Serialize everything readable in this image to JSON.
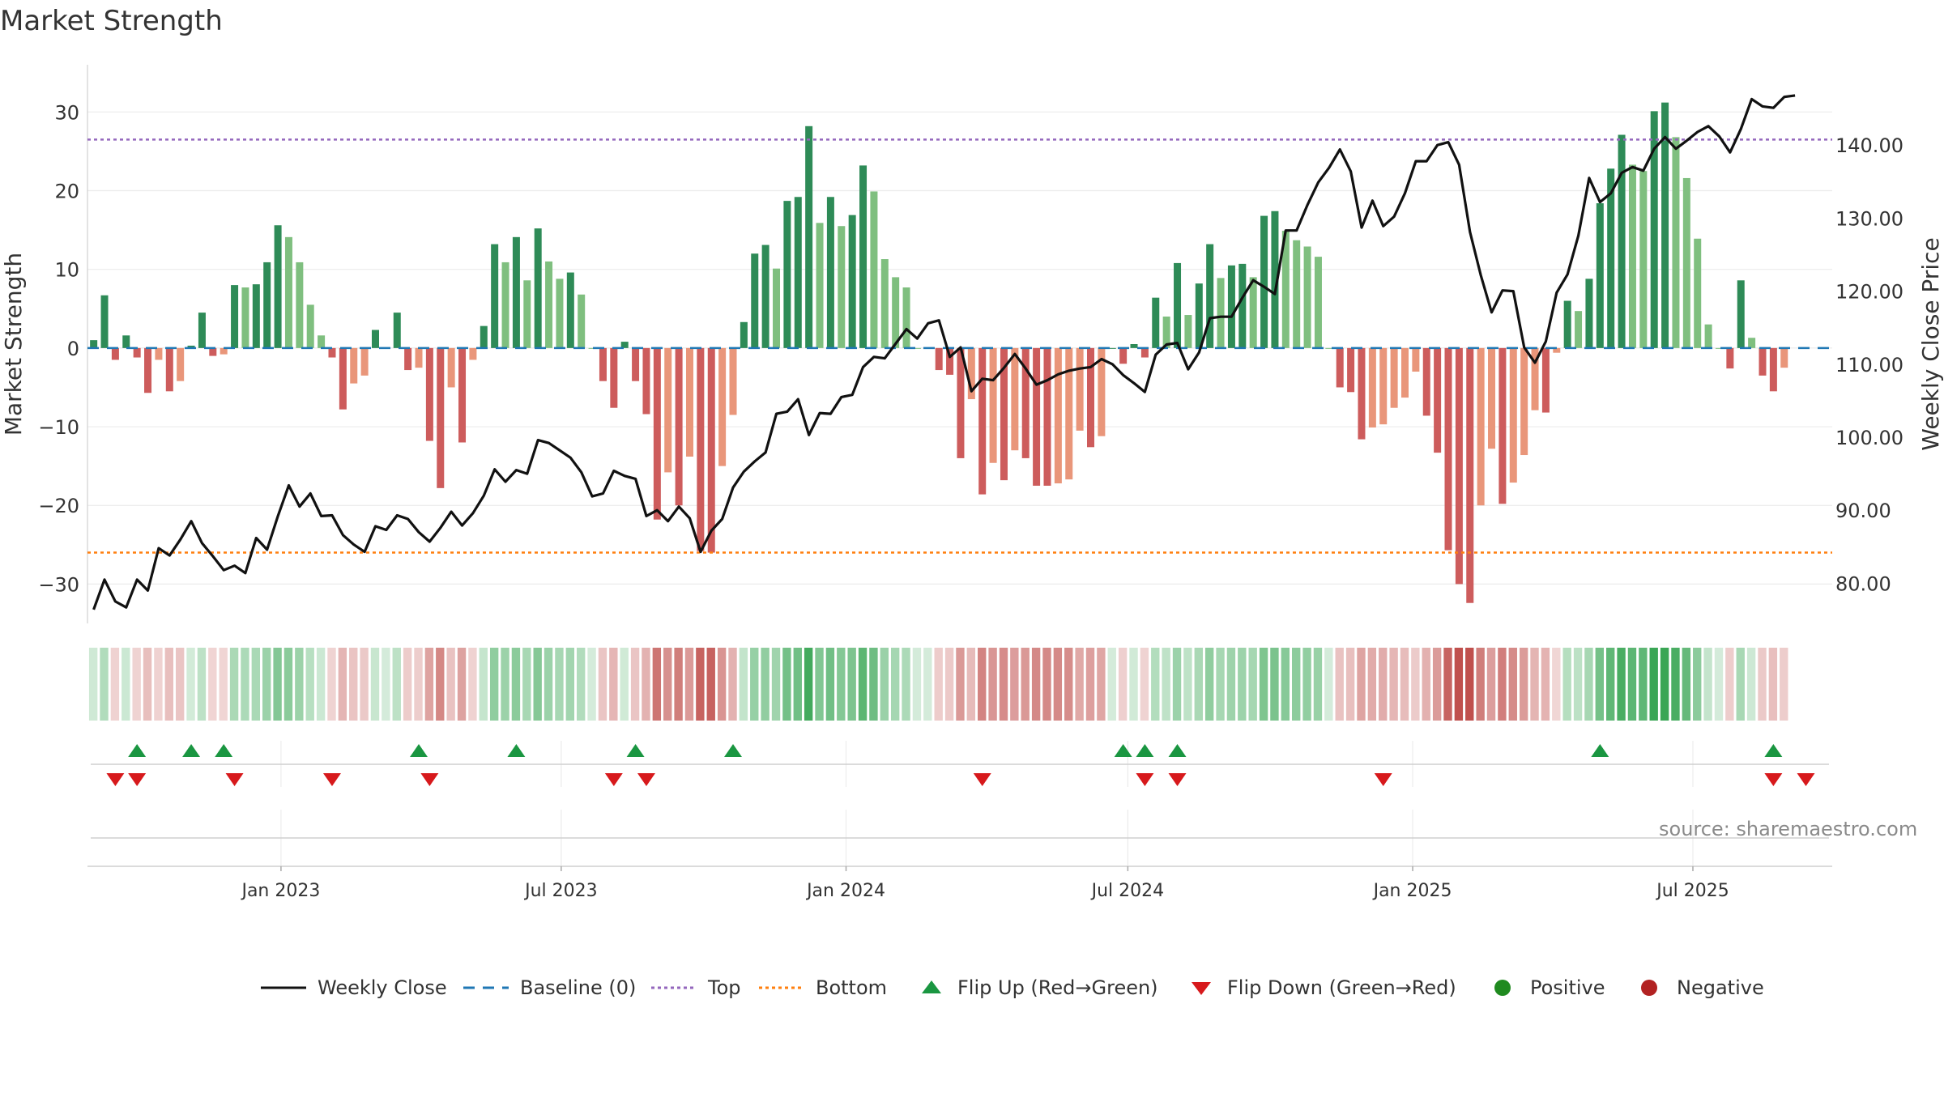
{
  "title": "Market Strength",
  "source": "source: sharemaestro.com",
  "colors": {
    "pos_dark": "#2e8b57",
    "pos_light": "#7fbf7f",
    "neg_dark": "#cd5c5c",
    "neg_light": "#e9967a",
    "close": "#111111",
    "baseline": "#1f77b4",
    "top": "#9467bd",
    "bottom": "#ff7f0e",
    "flip_up": "#1a9641",
    "flip_down": "#d7191c",
    "positive": "#1f8a1f",
    "negative": "#b22222"
  },
  "legend": [
    {
      "key": "close",
      "label": "Weekly Close"
    },
    {
      "key": "baseline",
      "label": "Baseline (0)"
    },
    {
      "key": "top",
      "label": "Top"
    },
    {
      "key": "bottom",
      "label": "Bottom"
    },
    {
      "key": "flip_up",
      "label": "Flip Up (Red→Green)"
    },
    {
      "key": "flip_down",
      "label": "Flip Down (Green→Red)"
    },
    {
      "key": "positive",
      "label": "Positive"
    },
    {
      "key": "negative",
      "label": "Negative"
    }
  ],
  "chart_data": {
    "type": "bar",
    "title": "Market Strength",
    "ylabel": "Market Strength",
    "y2label": "Weekly Close Price",
    "ylim": [
      -35,
      36
    ],
    "y2lim": [
      74.5,
      151
    ],
    "yticks": [
      30,
      20,
      10,
      0,
      -10,
      -20,
      -30
    ],
    "ytick_labels": [
      "30",
      "20",
      "10",
      "0",
      "−10",
      "−20",
      "−30"
    ],
    "y2ticks": [
      140,
      130,
      120,
      110,
      100,
      90,
      80
    ],
    "y2tick_labels": [
      "140.00",
      "130.00",
      "120.00",
      "110.00",
      "100.00",
      "90.00",
      "80.00"
    ],
    "top_threshold": 26.5,
    "bottom_threshold": -26,
    "baseline": 0,
    "date_start": "2022-09-02",
    "xlim": [
      "2022-08-29",
      "2025-09-29"
    ],
    "xticks": [
      "2023-01-01",
      "2023-07-01",
      "2024-01-01",
      "2024-07-01",
      "2025-01-01",
      "2025-07-01"
    ],
    "xtick_labels": [
      "Jan 2023",
      "Jul 2023",
      "Jan 2024",
      "Jul 2024",
      "Jan 2025",
      "Jul 2025"
    ],
    "strength": [
      1,
      6.7,
      -1.5,
      1.6,
      -1.2,
      -5.7,
      -1.5,
      -5.5,
      -4.2,
      0.3,
      4.5,
      -1,
      -0.8,
      8,
      7.7,
      8.1,
      10.9,
      15.6,
      14.1,
      10.9,
      5.5,
      1.6,
      -1.2,
      -7.8,
      -4.5,
      -3.5,
      2.3,
      0,
      4.5,
      -2.8,
      -2.5,
      -11.8,
      -17.8,
      -5,
      -12,
      -1.5,
      2.8,
      13.2,
      10.9,
      14.1,
      8.6,
      15.2,
      11,
      8.8,
      9.6,
      6.8,
      0,
      -4.2,
      -7.6,
      0.8,
      -4.2,
      -8.4,
      -21.8,
      -15.8,
      -20,
      -13.8,
      -25.8,
      -26,
      -15,
      -8.5,
      3.3,
      12,
      13.1,
      10.1,
      18.7,
      19.2,
      28.2,
      15.9,
      19.2,
      15.5,
      16.9,
      23.2,
      19.9,
      11.3,
      9,
      7.7,
      0,
      0,
      -2.8,
      -3.4,
      -14,
      -6.5,
      -18.6,
      -14.6,
      -16.8,
      -13,
      -14,
      -17.5,
      -17.5,
      -17.2,
      -16.7,
      -10.5,
      -12.6,
      -11.2,
      0,
      -2,
      0.5,
      -1.2,
      6.4,
      4,
      10.8,
      4.2,
      8.2,
      13.2,
      8.9,
      10.5,
      10.7,
      9,
      16.8,
      17.4,
      14.9,
      13.7,
      12.9,
      11.6,
      0,
      -5,
      -5.6,
      -11.6,
      -10.1,
      -9.7,
      -7.6,
      -6.3,
      -3,
      -8.6,
      -13.3,
      -25.7,
      -30,
      -32.4,
      -20,
      -12.8,
      -19.8,
      -17.1,
      -13.6,
      -7.9,
      -8.2,
      -0.6,
      6,
      4.7,
      8.8,
      18.4,
      22.8,
      27.1,
      23.3,
      22.5,
      30.1,
      31.2,
      26.8,
      21.6,
      13.9,
      3,
      0,
      -2.6,
      8.6,
      1.3,
      -3.5,
      -5.5,
      -2.5
    ],
    "close": [
      76.4,
      80.5,
      77.5,
      76.7,
      80.5,
      79,
      84.8,
      83.8,
      86,
      88.5,
      85.5,
      83.7,
      81.8,
      82.4,
      81.4,
      86.2,
      84.6,
      89.2,
      93.4,
      90.5,
      92.3,
      89.2,
      89.3,
      86.6,
      85.3,
      84.3,
      87.8,
      87.3,
      89.3,
      88.8,
      87,
      85.7,
      87.6,
      89.8,
      87.9,
      89.6,
      92,
      95.6,
      93.9,
      95.5,
      95,
      99.6,
      99.2,
      98.2,
      97.2,
      95.2,
      91.9,
      92.3,
      95.4,
      94.7,
      94.3,
      89.2,
      90,
      88.5,
      90.5,
      88.9,
      84.3,
      87.2,
      88.8,
      93.1,
      95.3,
      96.7,
      97.9,
      103.2,
      103.5,
      105.2,
      100.3,
      103.3,
      103.2,
      105.5,
      105.8,
      109.6,
      111,
      110.8,
      112.8,
      114.8,
      113.5,
      115.6,
      116,
      111,
      112.3,
      106.3,
      108,
      107.8,
      109.5,
      111.4,
      109.4,
      107.2,
      107.8,
      108.6,
      109.1,
      109.4,
      109.6,
      110.7,
      110,
      108.5,
      107.4,
      106.2,
      111.3,
      112.7,
      112.9,
      109.3,
      111.6,
      116.3,
      116.5,
      116.5,
      119.1,
      121.5,
      120.6,
      119.6,
      128.3,
      128.3,
      131.8,
      134.9,
      136.9,
      139.4,
      136.4,
      128.7,
      132.4,
      128.9,
      130.2,
      133.4,
      137.8,
      137.8,
      140,
      140.4,
      137.3,
      128.1,
      122.2,
      117.1,
      120.1,
      120,
      112.3,
      110.2,
      113.1,
      119.8,
      122.3,
      127.6,
      135.5,
      132.2,
      133.4,
      136.2,
      137,
      136.5,
      139.5,
      141.1,
      139.5,
      140.6,
      141.8,
      142.6,
      141.2,
      139,
      142.2,
      146.3,
      145.3,
      145.1,
      146.6,
      146.8
    ],
    "flip_up_dates": [
      "2022-09-30",
      "2022-11-04",
      "2022-11-25",
      "2023-03-31",
      "2023-06-02",
      "2023-08-18",
      "2023-10-20",
      "2024-06-28",
      "2024-07-12",
      "2024-08-02",
      "2025-05-02",
      "2025-08-22"
    ],
    "flip_down_dates": [
      "2022-09-16",
      "2022-09-30",
      "2022-12-02",
      "2023-02-03",
      "2023-04-07",
      "2023-08-04",
      "2023-08-25",
      "2024-03-29",
      "2024-07-12",
      "2024-08-02",
      "2024-12-13",
      "2025-08-22",
      "2025-09-12"
    ]
  }
}
